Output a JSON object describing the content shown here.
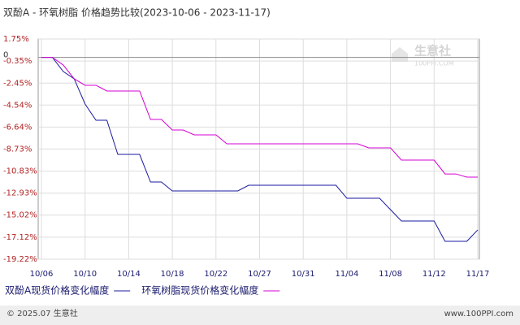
{
  "chart_data": {
    "type": "line",
    "title": "双酚A - 环氧树脂 价格趋势比较(2023-10-06 - 2023-11-17)",
    "categories": [
      "10/06",
      null,
      null,
      null,
      "10/10",
      null,
      null,
      null,
      "10/14",
      null,
      null,
      null,
      "10/18",
      null,
      null,
      null,
      "10/22",
      null,
      null,
      null,
      "10/27",
      null,
      null,
      null,
      "10/31",
      null,
      null,
      null,
      "11/04",
      null,
      null,
      null,
      "11/08",
      null,
      null,
      null,
      "11/12",
      null,
      null,
      null,
      "11/17"
    ],
    "series": [
      {
        "name": "双酚A现货价格变化幅度",
        "color": "#1a1aa0",
        "values": [
          0,
          0,
          -1.35,
          -2.04,
          -4.44,
          -5.99,
          -5.99,
          -9.24,
          -9.24,
          -9.24,
          -11.87,
          -11.87,
          -12.72,
          -12.72,
          -12.72,
          -12.72,
          -12.72,
          -12.72,
          -12.72,
          -12.18,
          -12.18,
          -12.18,
          -12.18,
          -12.18,
          -12.18,
          -12.18,
          -12.18,
          -12.18,
          -13.42,
          -13.42,
          -13.42,
          -13.42,
          -14.5,
          -15.58,
          -15.58,
          -15.58,
          -15.58,
          -17.52,
          -17.52,
          -17.52,
          -16.43
        ]
      },
      {
        "name": "环氧树脂现货价格变化幅度",
        "color": "#d400d4",
        "values": [
          0,
          0,
          -0.73,
          -2.04,
          -2.66,
          -2.66,
          -3.2,
          -3.2,
          -3.2,
          -3.2,
          -5.91,
          -5.91,
          -6.92,
          -6.92,
          -7.38,
          -7.38,
          -7.38,
          -8.23,
          -8.23,
          -8.23,
          -8.23,
          -8.23,
          -8.23,
          -8.23,
          -8.23,
          -8.23,
          -8.23,
          -8.23,
          -8.23,
          -8.23,
          -8.62,
          -8.62,
          -8.62,
          -9.78,
          -9.78,
          -9.78,
          -9.78,
          -11.1,
          -11.1,
          -11.4,
          -11.4
        ]
      }
    ],
    "ylim": [
      -19.22,
      1.75
    ],
    "yticks": [
      {
        "value": 1.75,
        "label": "1.75%"
      },
      {
        "value": -0.35,
        "label": "-0.35%"
      },
      {
        "value": -2.45,
        "label": "-2.45%"
      },
      {
        "value": -4.54,
        "label": "-4.54%"
      },
      {
        "value": -6.64,
        "label": "-6.64%"
      },
      {
        "value": -8.73,
        "label": "-8.73%"
      },
      {
        "value": -10.83,
        "label": "-10.83%"
      },
      {
        "value": -12.93,
        "label": "-12.93%"
      },
      {
        "value": -15.02,
        "label": "-15.02%"
      },
      {
        "value": -17.12,
        "label": "-17.12%"
      },
      {
        "value": -19.22,
        "label": "-19.22%"
      }
    ],
    "reference_line": {
      "value": 0,
      "label": "0"
    },
    "grid": true
  },
  "watermark": {
    "name": "生意社",
    "site": "100PPI.COM"
  },
  "footer": {
    "left": "© 2025.07 生意社",
    "right": "www.100PPI.com"
  }
}
